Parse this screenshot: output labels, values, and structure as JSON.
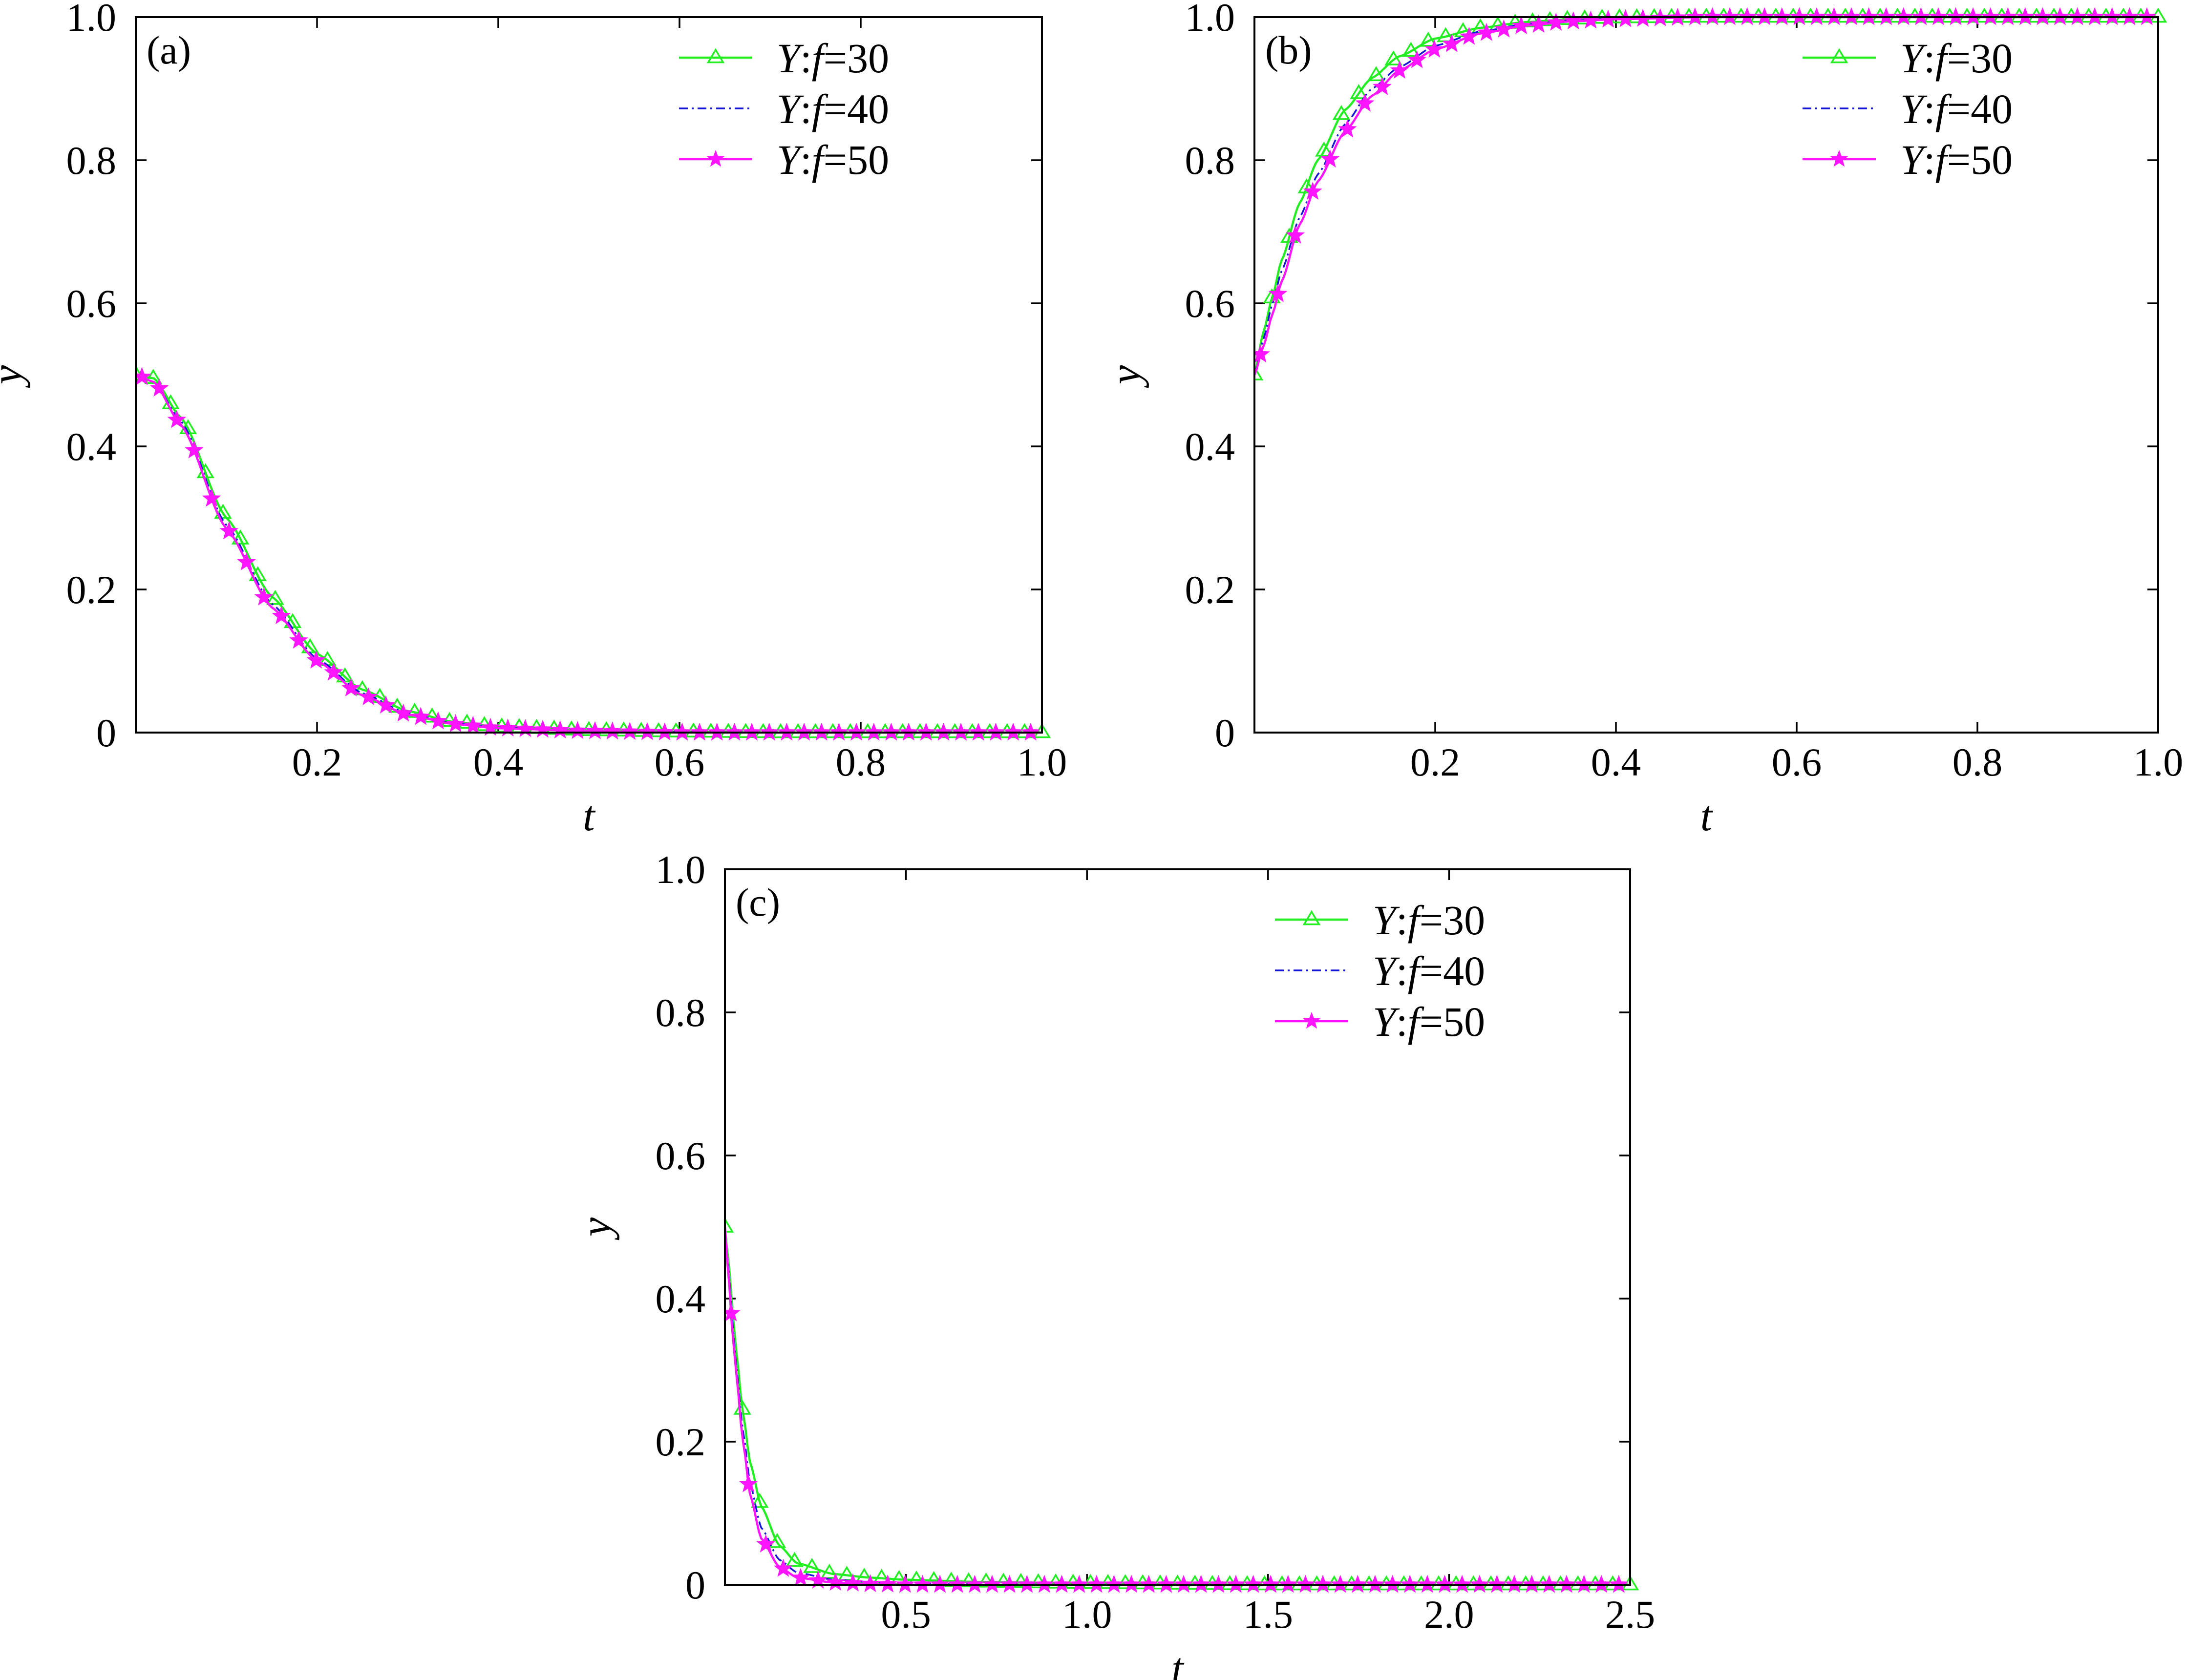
{
  "figure": {
    "colors": {
      "series_30": "#22ee22",
      "series_40": "#1515d6",
      "series_50": "#ff14ff",
      "axes": "#000000",
      "background": "#ffffff"
    }
  },
  "chart_data": [
    {
      "type": "line",
      "panel_label": "(a)",
      "xlabel": "t",
      "ylabel": "y",
      "xlim": [
        0,
        1.0
      ],
      "ylim": [
        0,
        1.0
      ],
      "x_ticks": [
        "0.2",
        "0.4",
        "0.6",
        "0.8",
        "1.0"
      ],
      "x_tick_values": [
        0.2,
        0.4,
        0.6,
        0.8,
        1.0
      ],
      "y_ticks": [
        "0",
        "0.2",
        "0.4",
        "0.6",
        "0.8",
        "1.0"
      ],
      "y_tick_values": [
        0,
        0.2,
        0.4,
        0.6,
        0.8,
        1.0
      ],
      "grid": false,
      "legend_position": "top-right",
      "x": [
        0,
        0.02,
        0.05,
        0.1,
        0.15,
        0.2,
        0.25,
        0.3,
        0.35,
        0.4,
        0.5,
        0.6,
        0.7,
        0.8,
        0.9,
        1.0
      ],
      "series": [
        {
          "name": "Y:f=30",
          "name_italic": "Y",
          "name_sep": ":",
          "name_italic2": "f",
          "name_rest": "=30",
          "marker": "triangle",
          "line": "solid",
          "color": "#22ee22",
          "values": [
            0.5,
            0.495,
            0.44,
            0.3,
            0.19,
            0.11,
            0.06,
            0.03,
            0.015,
            0.008,
            0.003,
            0.001,
            0.0,
            0.0,
            0.0,
            0.0
          ]
        },
        {
          "name": "Y:f=40",
          "name_italic": "Y",
          "name_sep": ":",
          "name_italic2": "f",
          "name_rest": "=40",
          "marker": "none",
          "line": "dashdot",
          "color": "#1515d6",
          "values": [
            0.5,
            0.49,
            0.435,
            0.29,
            0.18,
            0.103,
            0.055,
            0.027,
            0.013,
            0.007,
            0.002,
            0.001,
            0.0,
            0.0,
            0.0,
            0.0
          ]
        },
        {
          "name": "Y:f=50",
          "name_italic": "Y",
          "name_sep": ":",
          "name_italic2": "f",
          "name_rest": "=50",
          "marker": "star",
          "line": "solid",
          "color": "#ff14ff",
          "values": [
            0.5,
            0.49,
            0.43,
            0.285,
            0.175,
            0.1,
            0.052,
            0.025,
            0.012,
            0.006,
            0.002,
            0.0,
            0.0,
            0.0,
            0.0,
            0.0
          ]
        }
      ]
    },
    {
      "type": "line",
      "panel_label": "(b)",
      "xlabel": "t",
      "ylabel": "y",
      "xlim": [
        0,
        1.0
      ],
      "ylim": [
        0,
        1.0
      ],
      "x_ticks": [
        "0.2",
        "0.4",
        "0.6",
        "0.8",
        "1.0"
      ],
      "x_tick_values": [
        0.2,
        0.4,
        0.6,
        0.8,
        1.0
      ],
      "y_ticks": [
        "0",
        "0.2",
        "0.4",
        "0.6",
        "0.8",
        "1.0"
      ],
      "y_tick_values": [
        0,
        0.2,
        0.4,
        0.6,
        0.8,
        1.0
      ],
      "grid": false,
      "legend_position": "top-right",
      "x": [
        0,
        0.01,
        0.02,
        0.03,
        0.05,
        0.07,
        0.1,
        0.13,
        0.16,
        0.2,
        0.25,
        0.3,
        0.35,
        0.4,
        0.5,
        0.6,
        0.7,
        0.8,
        0.9,
        1.0
      ],
      "series": [
        {
          "name": "Y:f=30",
          "name_italic": "Y",
          "name_sep": ":",
          "name_italic2": "f",
          "name_rest": "=30",
          "marker": "triangle",
          "line": "solid",
          "color": "#22ee22",
          "values": [
            0.5,
            0.56,
            0.61,
            0.66,
            0.74,
            0.8,
            0.87,
            0.915,
            0.945,
            0.97,
            0.985,
            0.993,
            0.997,
            0.999,
            1.0,
            1.0,
            1.0,
            1.0,
            1.0,
            1.0
          ]
        },
        {
          "name": "Y:f=40",
          "name_italic": "Y",
          "name_sep": ":",
          "name_italic2": "f",
          "name_rest": "=40",
          "marker": "none",
          "line": "dashdot",
          "color": "#1515d6",
          "values": [
            0.5,
            0.55,
            0.6,
            0.645,
            0.72,
            0.78,
            0.85,
            0.9,
            0.93,
            0.96,
            0.98,
            0.99,
            0.995,
            0.998,
            1.0,
            1.0,
            1.0,
            1.0,
            1.0,
            1.0
          ]
        },
        {
          "name": "Y:f=50",
          "name_italic": "Y",
          "name_sep": ":",
          "name_italic2": "f",
          "name_rest": "=50",
          "marker": "star",
          "line": "solid",
          "color": "#ff14ff",
          "values": [
            0.5,
            0.54,
            0.585,
            0.63,
            0.71,
            0.77,
            0.84,
            0.89,
            0.925,
            0.955,
            0.977,
            0.988,
            0.994,
            0.997,
            1.0,
            1.0,
            1.0,
            1.0,
            1.0,
            1.0
          ]
        }
      ]
    },
    {
      "type": "line",
      "panel_label": "(c)",
      "xlabel": "t",
      "ylabel": "y",
      "xlim": [
        0,
        2.5
      ],
      "ylim": [
        0,
        1.0
      ],
      "x_ticks": [
        "0.5",
        "1.0",
        "1.5",
        "2.0",
        "2.5"
      ],
      "x_tick_values": [
        0.5,
        1.0,
        1.5,
        2.0,
        2.5
      ],
      "y_ticks": [
        "0",
        "0.2",
        "0.4",
        "0.6",
        "0.8",
        "1.0"
      ],
      "y_tick_values": [
        0,
        0.2,
        0.4,
        0.6,
        0.8,
        1.0
      ],
      "grid": false,
      "legend_position": "top-right",
      "x": [
        0,
        0.01,
        0.02,
        0.03,
        0.05,
        0.07,
        0.1,
        0.15,
        0.2,
        0.3,
        0.4,
        0.5,
        0.7,
        1.0,
        1.5,
        2.0,
        2.5
      ],
      "series": [
        {
          "name": "Y:f=30",
          "name_italic": "Y",
          "name_sep": ":",
          "name_italic2": "f",
          "name_rest": "=30",
          "marker": "triangle",
          "line": "solid",
          "color": "#22ee22",
          "values": [
            0.5,
            0.45,
            0.39,
            0.33,
            0.24,
            0.17,
            0.11,
            0.055,
            0.03,
            0.015,
            0.01,
            0.007,
            0.004,
            0.002,
            0.0,
            0.0,
            0.0
          ]
        },
        {
          "name": "Y:f=40",
          "name_italic": "Y",
          "name_sep": ":",
          "name_italic2": "f",
          "name_rest": "=40",
          "marker": "none",
          "line": "dashdot",
          "color": "#1515d6",
          "values": [
            0.5,
            0.44,
            0.375,
            0.31,
            0.215,
            0.14,
            0.08,
            0.035,
            0.017,
            0.007,
            0.004,
            0.002,
            0.001,
            0.0,
            0.0,
            0.0,
            0.0
          ]
        },
        {
          "name": "Y:f=50",
          "name_italic": "Y",
          "name_sep": ":",
          "name_italic2": "f",
          "name_rest": "=50",
          "marker": "star",
          "line": "solid",
          "color": "#ff14ff",
          "values": [
            0.5,
            0.43,
            0.36,
            0.3,
            0.2,
            0.125,
            0.065,
            0.025,
            0.01,
            0.003,
            0.001,
            0.0,
            0.0,
            0.0,
            0.0,
            0.0,
            0.0
          ]
        }
      ]
    }
  ]
}
